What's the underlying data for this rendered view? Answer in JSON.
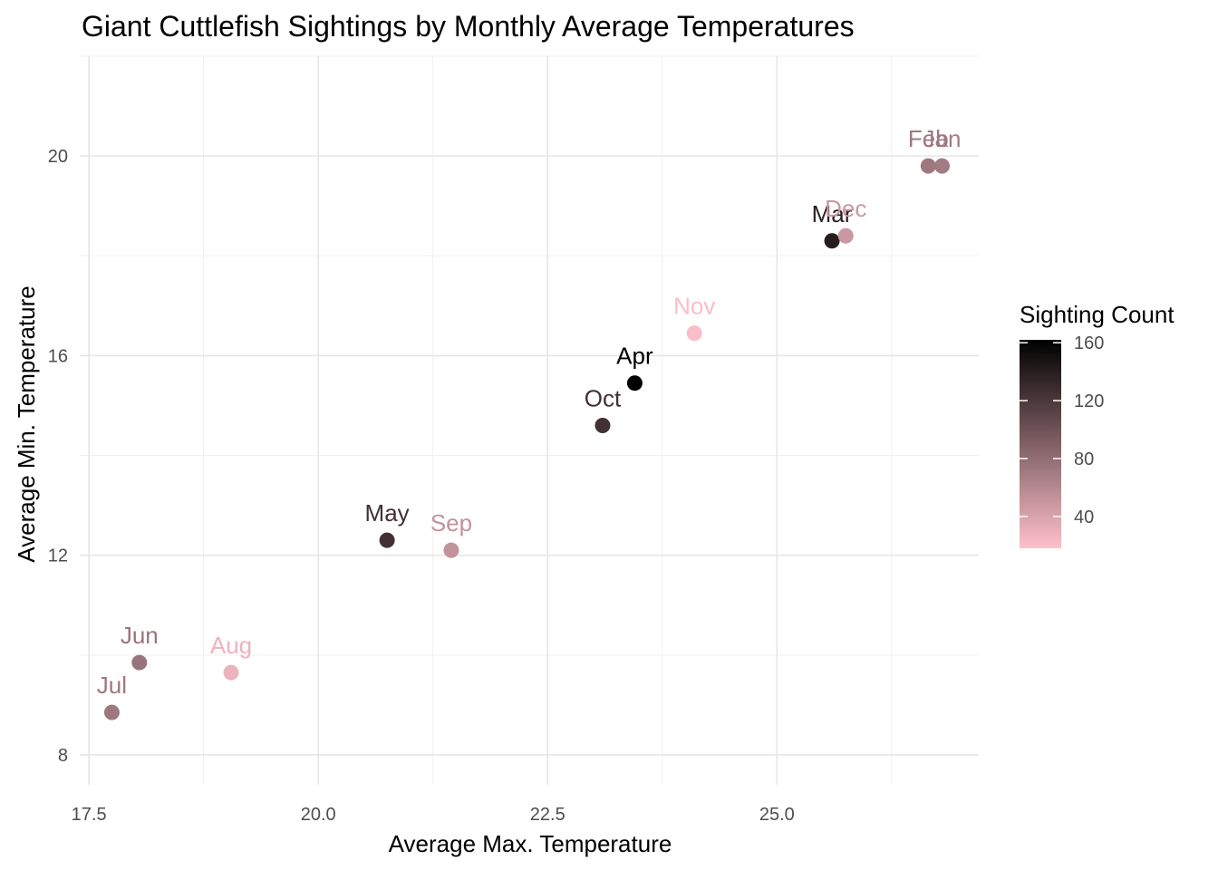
{
  "chart_data": {
    "type": "scatter",
    "title": "Giant Cuttlefish Sightings by Monthly Average Temperatures",
    "xlabel": "Average Max. Temperature",
    "ylabel": "Average Min. Temperature",
    "xlim": [
      17.4,
      27.2
    ],
    "ylim": [
      7.4,
      22.0
    ],
    "x_ticks": [
      17.5,
      20.0,
      22.5,
      25.0
    ],
    "x_tick_labels": [
      "17.5",
      "20.0",
      "22.5",
      "25.0"
    ],
    "y_ticks": [
      8,
      12,
      16,
      20
    ],
    "y_tick_labels": [
      "8",
      "12",
      "16",
      "20"
    ],
    "grid": true,
    "legend": {
      "title": "Sighting Count",
      "placement": "right",
      "min": 18,
      "max": 162,
      "ticks": [
        40,
        80,
        120,
        160
      ],
      "tick_labels": [
        "40",
        "80",
        "120",
        "160"
      ],
      "color_low": "#ffc0cb",
      "color_high": "#000000"
    },
    "points": [
      {
        "label": "Jan",
        "x": 26.8,
        "y": 19.8,
        "count": 70
      },
      {
        "label": "Feb",
        "x": 26.65,
        "y": 19.8,
        "count": 72
      },
      {
        "label": "Mar",
        "x": 25.6,
        "y": 18.3,
        "count": 140
      },
      {
        "label": "Apr",
        "x": 23.45,
        "y": 15.45,
        "count": 162
      },
      {
        "label": "May",
        "x": 20.75,
        "y": 12.3,
        "count": 125
      },
      {
        "label": "Jun",
        "x": 18.05,
        "y": 9.85,
        "count": 75
      },
      {
        "label": "Jul",
        "x": 17.75,
        "y": 8.85,
        "count": 72
      },
      {
        "label": "Aug",
        "x": 19.05,
        "y": 9.65,
        "count": 28
      },
      {
        "label": "Sep",
        "x": 21.45,
        "y": 12.1,
        "count": 52
      },
      {
        "label": "Oct",
        "x": 23.1,
        "y": 14.6,
        "count": 125
      },
      {
        "label": "Nov",
        "x": 24.1,
        "y": 16.45,
        "count": 20
      },
      {
        "label": "Dec",
        "x": 25.75,
        "y": 18.4,
        "count": 48
      }
    ]
  }
}
